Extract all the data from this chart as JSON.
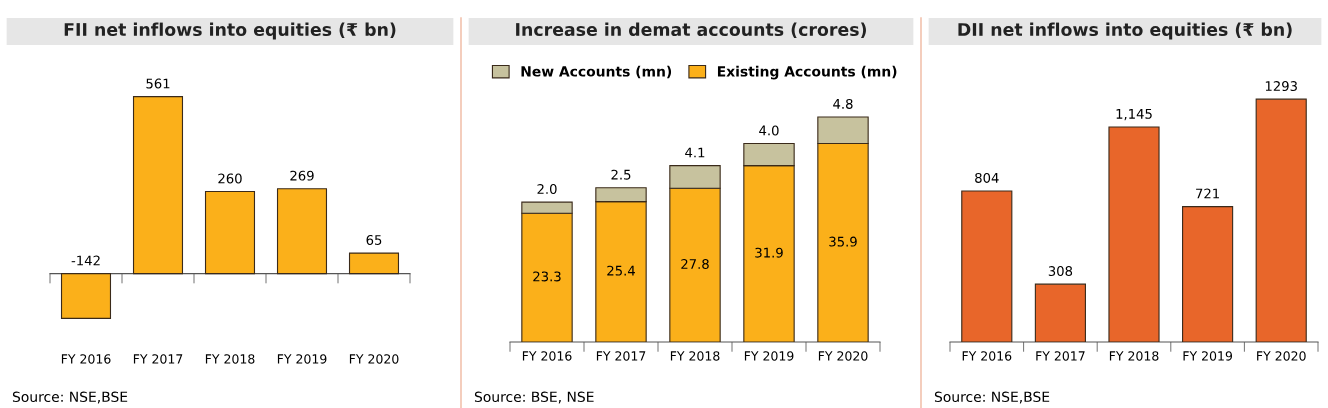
{
  "chart_data": [
    {
      "type": "bar",
      "title": "FII net inflows into equities (₹ bn)",
      "categories": [
        "FY 2016",
        "FY 2017",
        "FY 2018",
        "FY 2019",
        "FY 2020"
      ],
      "values": [
        -142,
        561,
        260,
        269,
        65
      ],
      "color": "#fbb01a",
      "data_labels": true,
      "annotations": [
        "Source: NSE,BSE"
      ]
    },
    {
      "type": "bar",
      "title": "Increase in demat accounts (crores)",
      "categories": [
        "FY 2016",
        "FY 2017",
        "FY 2018",
        "FY 2019",
        "FY 2020"
      ],
      "stacked": true,
      "legend": "top",
      "data_labels": true,
      "series": [
        {
          "name": "Existing Accounts (mn)",
          "color": "#fbb01a",
          "values": [
            23.3,
            25.4,
            27.8,
            31.9,
            35.9
          ],
          "value_labels": [
            "23.3",
            "25.4",
            "27.8",
            "31.9",
            "35.9"
          ]
        },
        {
          "name": "New Accounts (mn)",
          "color": "#c7c29e",
          "values": [
            2.0,
            2.5,
            4.1,
            4.0,
            4.8
          ],
          "value_labels": [
            "2.0",
            "2.5",
            "4.1",
            "4.0",
            "4.8"
          ]
        }
      ],
      "annotations": [
        "Source: BSE, NSE"
      ]
    },
    {
      "type": "bar",
      "title": "DII net inflows into equities (₹ bn)",
      "categories": [
        "FY 2016",
        "FY 2017",
        "FY 2018",
        "FY 2019",
        "FY 2020"
      ],
      "values": [
        804,
        308,
        1145,
        721,
        1293
      ],
      "value_labels": [
        "804",
        "308",
        "1,145",
        "721",
        "1293"
      ],
      "color": "#e8662a",
      "annotations": [
        "Source: NSE,BSE"
      ]
    }
  ]
}
